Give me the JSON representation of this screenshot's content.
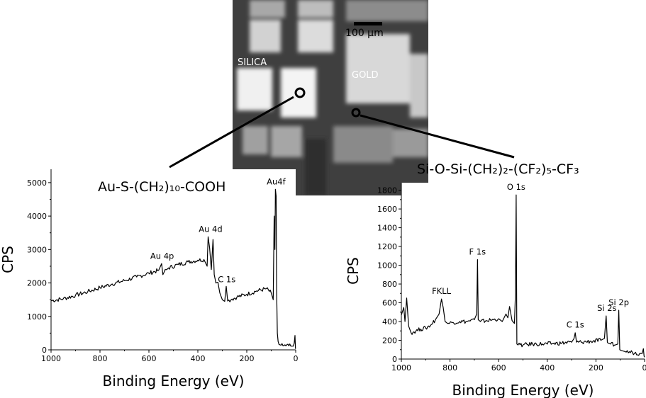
{
  "micrograph": {
    "region_labels": {
      "silica": "SILICA",
      "gold": "GOLD"
    },
    "scale_bar_label": "100 µm"
  },
  "chart_data": [
    {
      "type": "line",
      "formula": "Au-S-(CH₂)₁₀-COOH",
      "xlabel": "Binding Energy (eV)",
      "ylabel": "CPS",
      "xlim": [
        1000,
        0
      ],
      "ylim": [
        0,
        5400
      ],
      "x_reversed": true,
      "x_ticks": [
        1000,
        800,
        600,
        400,
        200,
        0
      ],
      "y_ticks": [
        0,
        1000,
        2000,
        3000,
        4000,
        5000
      ],
      "grid": false,
      "series": [
        {
          "x": [
            1000,
            950,
            900,
            850,
            800,
            750,
            700,
            650,
            600,
            560,
            548,
            543,
            538,
            520,
            480,
            440,
            400,
            375,
            362,
            358,
            352,
            345,
            338,
            333,
            326,
            318,
            310,
            300,
            290,
            284,
            278,
            260,
            240,
            200,
            160,
            120,
            100,
            92,
            88,
            85,
            83,
            80,
            78,
            75,
            72,
            68,
            60,
            40,
            20,
            10,
            6,
            3,
            1
          ],
          "y": [
            1470,
            1530,
            1630,
            1740,
            1860,
            1970,
            2070,
            2180,
            2290,
            2380,
            2580,
            2250,
            2320,
            2450,
            2550,
            2630,
            2680,
            2700,
            2500,
            3380,
            3050,
            2400,
            3300,
            2250,
            2000,
            2020,
            1700,
            1500,
            1450,
            1900,
            1460,
            1520,
            1580,
            1660,
            1760,
            1830,
            1700,
            1500,
            4000,
            3000,
            4800,
            4600,
            1800,
            500,
            250,
            160,
            140,
            120,
            110,
            110,
            200,
            430,
            30
          ]
        }
      ],
      "annotations": [
        {
          "text": "Au 4p",
          "x": 546,
          "y": 2590
        },
        {
          "text": "Au 4d",
          "x": 348,
          "y": 3400
        },
        {
          "text": "C 1s",
          "x": 282,
          "y": 1900
        },
        {
          "text": "Au4f",
          "x": 80,
          "y": 4820
        }
      ]
    },
    {
      "type": "line",
      "formula": "Si-O-Si-(CH₂)₂-(CF₂)₅-CF₃",
      "xlabel": "Binding Energy (eV)",
      "ylabel": "CPS",
      "xlim": [
        1000,
        0
      ],
      "ylim": [
        0,
        1880
      ],
      "x_reversed": true,
      "x_ticks": [
        1000,
        800,
        600,
        400,
        200,
        0
      ],
      "y_ticks": [
        0,
        200,
        400,
        600,
        800,
        1000,
        1200,
        1400,
        1600,
        1800
      ],
      "grid": false,
      "series": [
        {
          "x": [
            1000,
            990,
            985,
            978,
            970,
            960,
            940,
            920,
            900,
            880,
            860,
            845,
            835,
            828,
            820,
            810,
            790,
            760,
            730,
            700,
            690,
            687,
            684,
            675,
            650,
            620,
            600,
            585,
            570,
            562,
            555,
            545,
            535,
            531,
            528,
            525,
            520,
            500,
            460,
            420,
            380,
            340,
            300,
            290,
            285,
            280,
            260,
            220,
            180,
            165,
            158,
            153,
            150,
            140,
            120,
            110,
            106,
            102,
            95,
            80,
            50,
            20,
            10,
            5,
            2,
            0
          ],
          "y": [
            470,
            550,
            400,
            650,
            350,
            280,
            300,
            320,
            330,
            360,
            420,
            480,
            640,
            550,
            400,
            380,
            390,
            400,
            400,
            420,
            480,
            1060,
            420,
            400,
            410,
            420,
            430,
            400,
            480,
            440,
            560,
            410,
            380,
            700,
            1750,
            160,
            150,
            150,
            160,
            160,
            165,
            170,
            180,
            220,
            280,
            180,
            180,
            190,
            200,
            220,
            460,
            180,
            170,
            160,
            150,
            160,
            520,
            100,
            90,
            80,
            70,
            60,
            60,
            110,
            30,
            20
          ]
        }
      ],
      "annotations": [
        {
          "text": "FKLL",
          "x": 835,
          "y": 650
        },
        {
          "text": "F 1s",
          "x": 687,
          "y": 1070
        },
        {
          "text": "O 1s",
          "x": 528,
          "y": 1760
        },
        {
          "text": "C 1s",
          "x": 285,
          "y": 290
        },
        {
          "text": "Si 2s",
          "x": 155,
          "y": 470
        },
        {
          "text": "Si 2p",
          "x": 106,
          "y": 530
        }
      ]
    }
  ]
}
